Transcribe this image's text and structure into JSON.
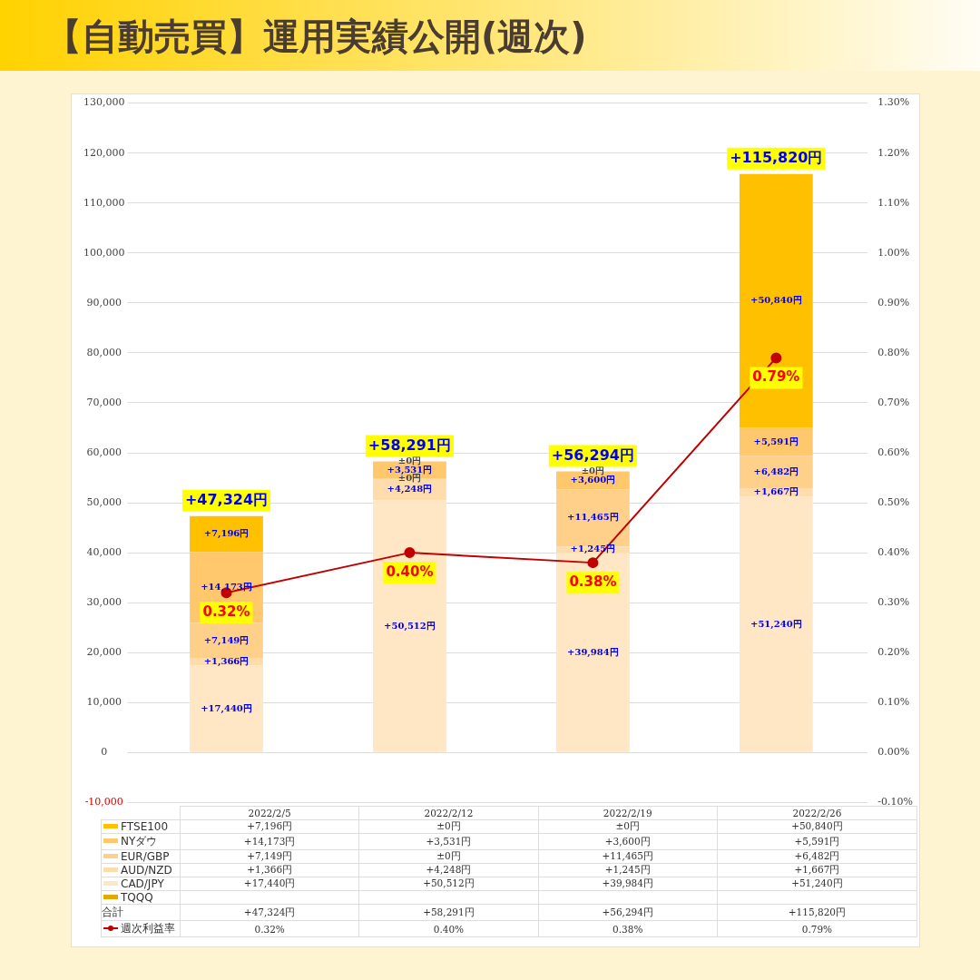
{
  "chart_data": {
    "type": "bar",
    "title": "【自動売買】運用実績公開(週次)",
    "stacked": true,
    "grid": "y",
    "legend": "bottom",
    "marker": "circle",
    "line_style": "solid",
    "categories": [
      "2022/2/5",
      "2022/2/12",
      "2022/2/19",
      "2022/2/26"
    ],
    "ylim": [
      -10000,
      130000
    ],
    "yticks": [
      {
        "value": -10000,
        "label": "-10,000"
      },
      0,
      {
        "value": 10000,
        "label": "10,000"
      },
      {
        "value": 20000,
        "label": "20,000"
      },
      {
        "value": 30000,
        "label": "30,000"
      },
      {
        "value": 40000,
        "label": "40,000"
      },
      {
        "value": 50000,
        "label": "50,000"
      },
      {
        "value": 60000,
        "label": "60,000"
      },
      {
        "value": 70000,
        "label": "70,000"
      },
      {
        "value": 80000,
        "label": "80,000"
      },
      {
        "value": 90000,
        "label": "90,000"
      },
      {
        "value": 100000,
        "label": "100,000"
      },
      {
        "value": 110000,
        "label": "110,000"
      },
      {
        "value": 120000,
        "label": "120,000"
      },
      {
        "value": 130000,
        "label": "130,000"
      }
    ],
    "y2lim": [
      -0.1,
      1.3
    ],
    "y2ticks": [
      {
        "value": -0.1,
        "label": "-0.10%"
      },
      {
        "value": 0,
        "label": "0.00%"
      },
      {
        "value": 0.1,
        "label": "0.10%"
      },
      {
        "value": 0.2,
        "label": "0.20%"
      },
      {
        "value": 0.3,
        "label": "0.30%"
      },
      {
        "value": 0.4,
        "label": "0.40%"
      },
      {
        "value": 0.5,
        "label": "0.50%"
      },
      {
        "value": 0.6,
        "label": "0.60%"
      },
      {
        "value": 0.7,
        "label": "0.70%"
      },
      {
        "value": 0.8,
        "label": "0.80%"
      },
      {
        "value": 0.9,
        "label": "0.90%"
      },
      {
        "value": 1.0,
        "label": "1.00%"
      },
      {
        "value": 1.1,
        "label": "1.10%"
      },
      {
        "value": 1.2,
        "label": "1.20%"
      },
      {
        "value": 1.3,
        "label": "1.30%"
      }
    ],
    "series": [
      {
        "name": "CAD/JPY",
        "color": "#ffe6c4",
        "values": [
          17440,
          50512,
          39984,
          51240
        ],
        "value_labels": [
          "+17,440円",
          "+50,512円",
          "+39,984円",
          "+51,240円"
        ]
      },
      {
        "name": "AUD/NZD",
        "color": "#ffdcab",
        "values": [
          1366,
          4248,
          1245,
          1667
        ],
        "value_labels": [
          "+1,366円",
          "+4,248円",
          "+1,245円",
          "+1,667円"
        ]
      },
      {
        "name": "EUR/GBP",
        "color": "#ffd08a",
        "values": [
          7149,
          0,
          11465,
          6482
        ],
        "value_labels": [
          "+7,149円",
          "±0円",
          "+11,465円",
          "+6,482円"
        ]
      },
      {
        "name": "NYダウ",
        "color": "#ffc86c",
        "values": [
          14173,
          3531,
          3600,
          5591
        ],
        "value_labels": [
          "+14,173円",
          "+3,531円",
          "+3,600円",
          "+5,591円"
        ]
      },
      {
        "name": "FTSE100",
        "color": "#ffc000",
        "values": [
          7196,
          0,
          0,
          50840
        ],
        "value_labels": [
          "+7,196円",
          "±0円",
          "±0円",
          "+50,840円"
        ]
      },
      {
        "name": "TQQQ",
        "color": "#e6a800",
        "values": [
          null,
          null,
          null,
          null
        ]
      },
      {
        "name": "週次利益率",
        "type": "line",
        "axis": "y2",
        "color": "#c00000",
        "values": [
          0.32,
          0.4,
          0.38,
          0.79
        ],
        "value_labels": [
          "0.32%",
          "0.40%",
          "0.38%",
          "0.79%"
        ]
      }
    ],
    "totals": [
      "+47,324円",
      "+58,291円",
      "+56,294円",
      "+115,820円"
    ],
    "annotations": [
      "合計"
    ]
  }
}
